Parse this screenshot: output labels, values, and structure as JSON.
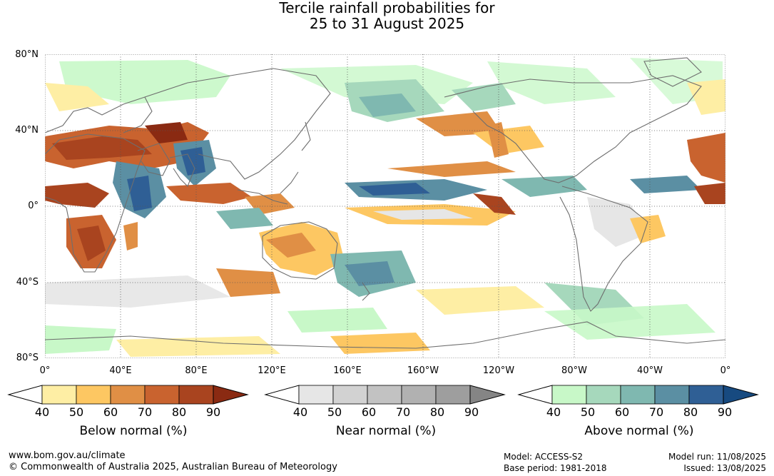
{
  "header": {
    "title_line1": "Tercile rainfall probabilities for",
    "title_line2": "25 to 31 August 2025"
  },
  "map": {
    "lat_labels": [
      "80°N",
      "40°N",
      "0°",
      "40°S",
      "80°S"
    ],
    "lon_labels": [
      "0°",
      "40°E",
      "80°E",
      "120°E",
      "160°E",
      "160°W",
      "120°W",
      "80°W",
      "40°W",
      "0°"
    ]
  },
  "legends": [
    {
      "title": "Below normal (%)",
      "ticks": [
        "40",
        "50",
        "60",
        "70",
        "80",
        "90"
      ],
      "colors": [
        "#ffffff",
        "#feeea4",
        "#fdc762",
        "#e08f45",
        "#c9632f",
        "#a9441f",
        "#8a2a12"
      ]
    },
    {
      "title": "Near normal (%)",
      "ticks": [
        "40",
        "50",
        "60",
        "70",
        "80",
        "90"
      ],
      "colors": [
        "#ffffff",
        "#e6e6e6",
        "#d2d2d2",
        "#c2c2c2",
        "#b1b1b1",
        "#9e9e9e",
        "#858585"
      ]
    },
    {
      "title": "Above normal (%)",
      "ticks": [
        "40",
        "50",
        "60",
        "70",
        "80",
        "90"
      ],
      "colors": [
        "#ffffff",
        "#c8f8c8",
        "#a6d8bc",
        "#7fb8b0",
        "#5b8fa3",
        "#2f5f95",
        "#174a80"
      ]
    }
  ],
  "footer": {
    "website": "www.bom.gov.au/climate",
    "copyright": "© Commonwealth of Australia 2025, Australian Bureau of Meteorology",
    "model": "Model: ACCESS-S2",
    "base_period": "Base period: 1981-2018",
    "model_run": "Model run: 11/08/2025",
    "issued": "Issued: 13/08/2025"
  }
}
